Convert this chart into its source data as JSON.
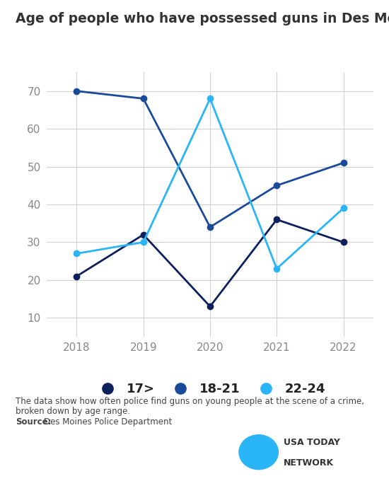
{
  "title": "Age of people who have possessed guns in Des Moines",
  "years": [
    2018,
    2019,
    2020,
    2021,
    2022
  ],
  "series_order": [
    "17>",
    "18-21",
    "22-24"
  ],
  "series": {
    "17>": {
      "values": [
        21,
        32,
        13,
        36,
        30
      ],
      "color": "#0d1f5c"
    },
    "18-21": {
      "values": [
        70,
        68,
        34,
        45,
        51
      ],
      "color": "#1a4a9a"
    },
    "22-24": {
      "values": [
        27,
        30,
        68,
        23,
        39
      ],
      "color": "#29b5f6"
    }
  },
  "ylim": [
    5,
    75
  ],
  "yticks": [
    10,
    20,
    30,
    40,
    50,
    60,
    70
  ],
  "xlim": [
    2017.55,
    2022.45
  ],
  "footnote_line1": "The data show how often police find guns on young people at the scene of a crime,",
  "footnote_line2": "broken down by age range.",
  "source_label": "Source:",
  "source_text": "Des Moines Police Department",
  "background_color": "#ffffff",
  "grid_color": "#d0d0d0",
  "legend_labels": [
    "17>",
    "18-21",
    "22-24"
  ],
  "legend_colors": [
    "#0d1f5c",
    "#1a4a9a",
    "#29b5f6"
  ],
  "tick_color": "#888888",
  "text_color": "#444444",
  "title_color": "#333333"
}
